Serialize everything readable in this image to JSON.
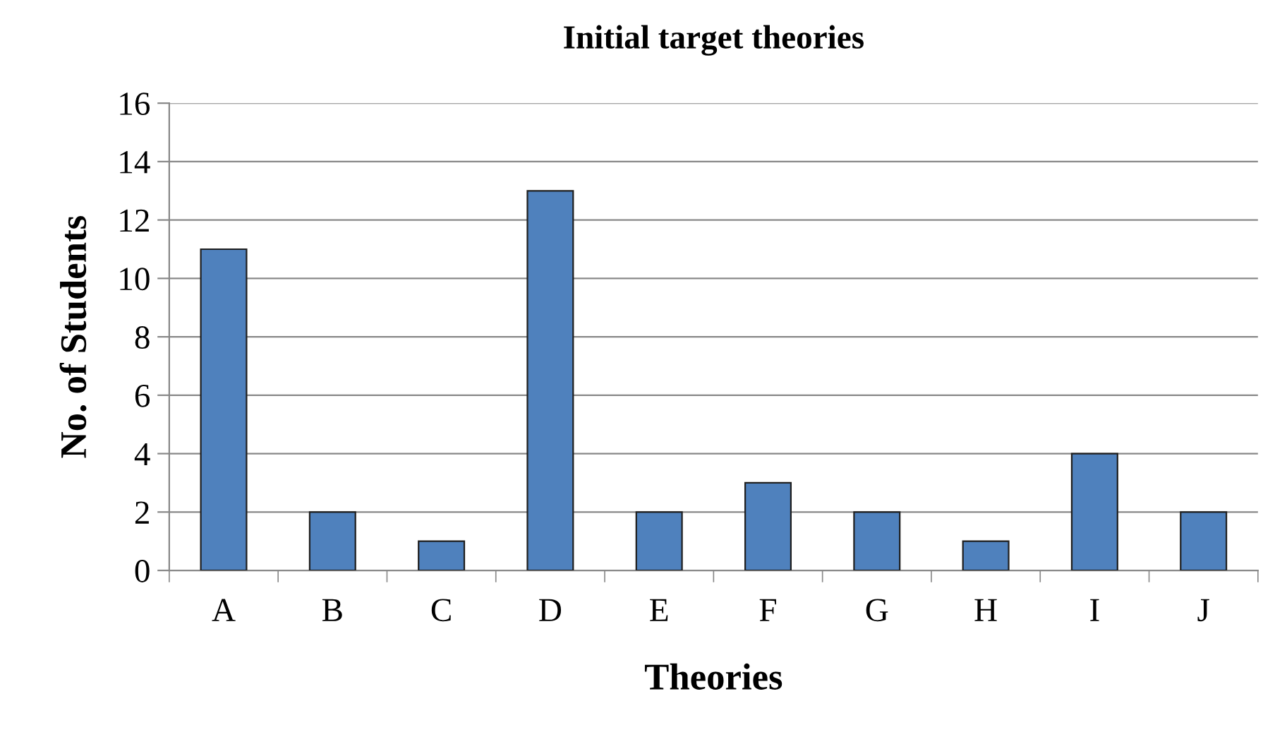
{
  "chart_data": {
    "type": "bar",
    "title": "Initial target theories",
    "xlabel": "Theories",
    "ylabel": "No. of Students",
    "categories": [
      "A",
      "B",
      "C",
      "D",
      "E",
      "F",
      "G",
      "H",
      "I",
      "J"
    ],
    "values": [
      11,
      2,
      1,
      13,
      2,
      3,
      2,
      1,
      4,
      2
    ],
    "color": "#4f81bd",
    "ylim": [
      0,
      16
    ],
    "yticks": [
      0,
      2,
      4,
      6,
      8,
      10,
      12,
      14,
      16
    ],
    "grid": "y"
  }
}
